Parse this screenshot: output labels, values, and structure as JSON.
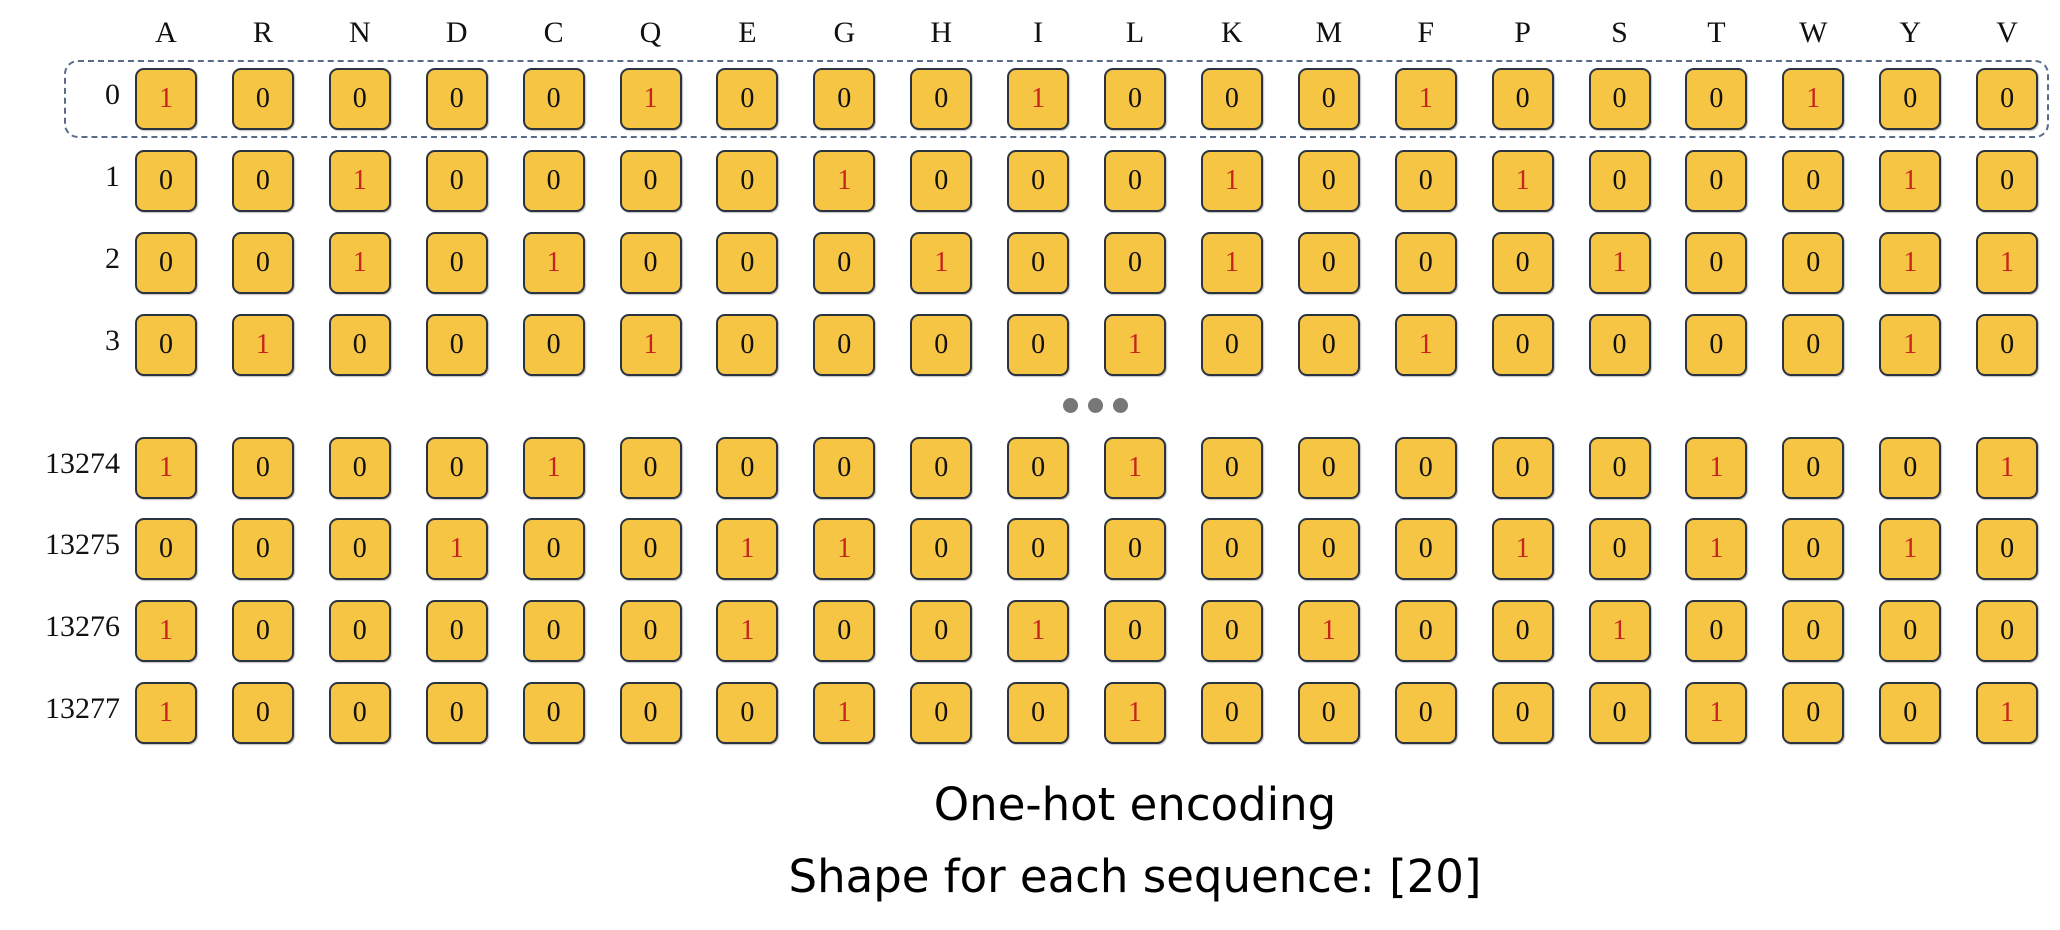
{
  "columns": [
    "A",
    "R",
    "N",
    "D",
    "C",
    "Q",
    "E",
    "G",
    "H",
    "I",
    "L",
    "K",
    "M",
    "F",
    "P",
    "S",
    "T",
    "W",
    "Y",
    "V"
  ],
  "top_rows": [
    {
      "label": "0",
      "values": [
        1,
        0,
        0,
        0,
        0,
        1,
        0,
        0,
        0,
        1,
        0,
        0,
        0,
        1,
        0,
        0,
        0,
        1,
        0,
        0
      ]
    },
    {
      "label": "1",
      "values": [
        0,
        0,
        1,
        0,
        0,
        0,
        0,
        1,
        0,
        0,
        0,
        1,
        0,
        0,
        1,
        0,
        0,
        0,
        1,
        0
      ]
    },
    {
      "label": "2",
      "values": [
        0,
        0,
        1,
        0,
        1,
        0,
        0,
        0,
        1,
        0,
        0,
        1,
        0,
        0,
        0,
        1,
        0,
        0,
        1,
        1
      ]
    },
    {
      "label": "3",
      "values": [
        0,
        1,
        0,
        0,
        0,
        1,
        0,
        0,
        0,
        0,
        1,
        0,
        0,
        1,
        0,
        0,
        0,
        0,
        1,
        0
      ]
    }
  ],
  "bottom_rows": [
    {
      "label": "13274",
      "values": [
        1,
        0,
        0,
        0,
        1,
        0,
        0,
        0,
        0,
        0,
        1,
        0,
        0,
        0,
        0,
        0,
        1,
        0,
        0,
        1
      ]
    },
    {
      "label": "13275",
      "values": [
        0,
        0,
        0,
        1,
        0,
        0,
        1,
        1,
        0,
        0,
        0,
        0,
        0,
        0,
        1,
        0,
        1,
        0,
        1,
        0
      ]
    },
    {
      "label": "13276",
      "values": [
        1,
        0,
        0,
        0,
        0,
        0,
        1,
        0,
        0,
        1,
        0,
        0,
        1,
        0,
        0,
        1,
        0,
        0,
        0,
        0
      ]
    },
    {
      "label": "13277",
      "values": [
        1,
        0,
        0,
        0,
        0,
        0,
        0,
        1,
        0,
        0,
        1,
        0,
        0,
        0,
        0,
        0,
        1,
        0,
        0,
        1
      ]
    }
  ],
  "caption": {
    "title": "One-hot encoding",
    "subtitle": "Shape for each sequence: [20]"
  },
  "colors": {
    "cell_fill": "#f6c544",
    "one_text": "#c8231d",
    "zero_text": "#111111"
  }
}
